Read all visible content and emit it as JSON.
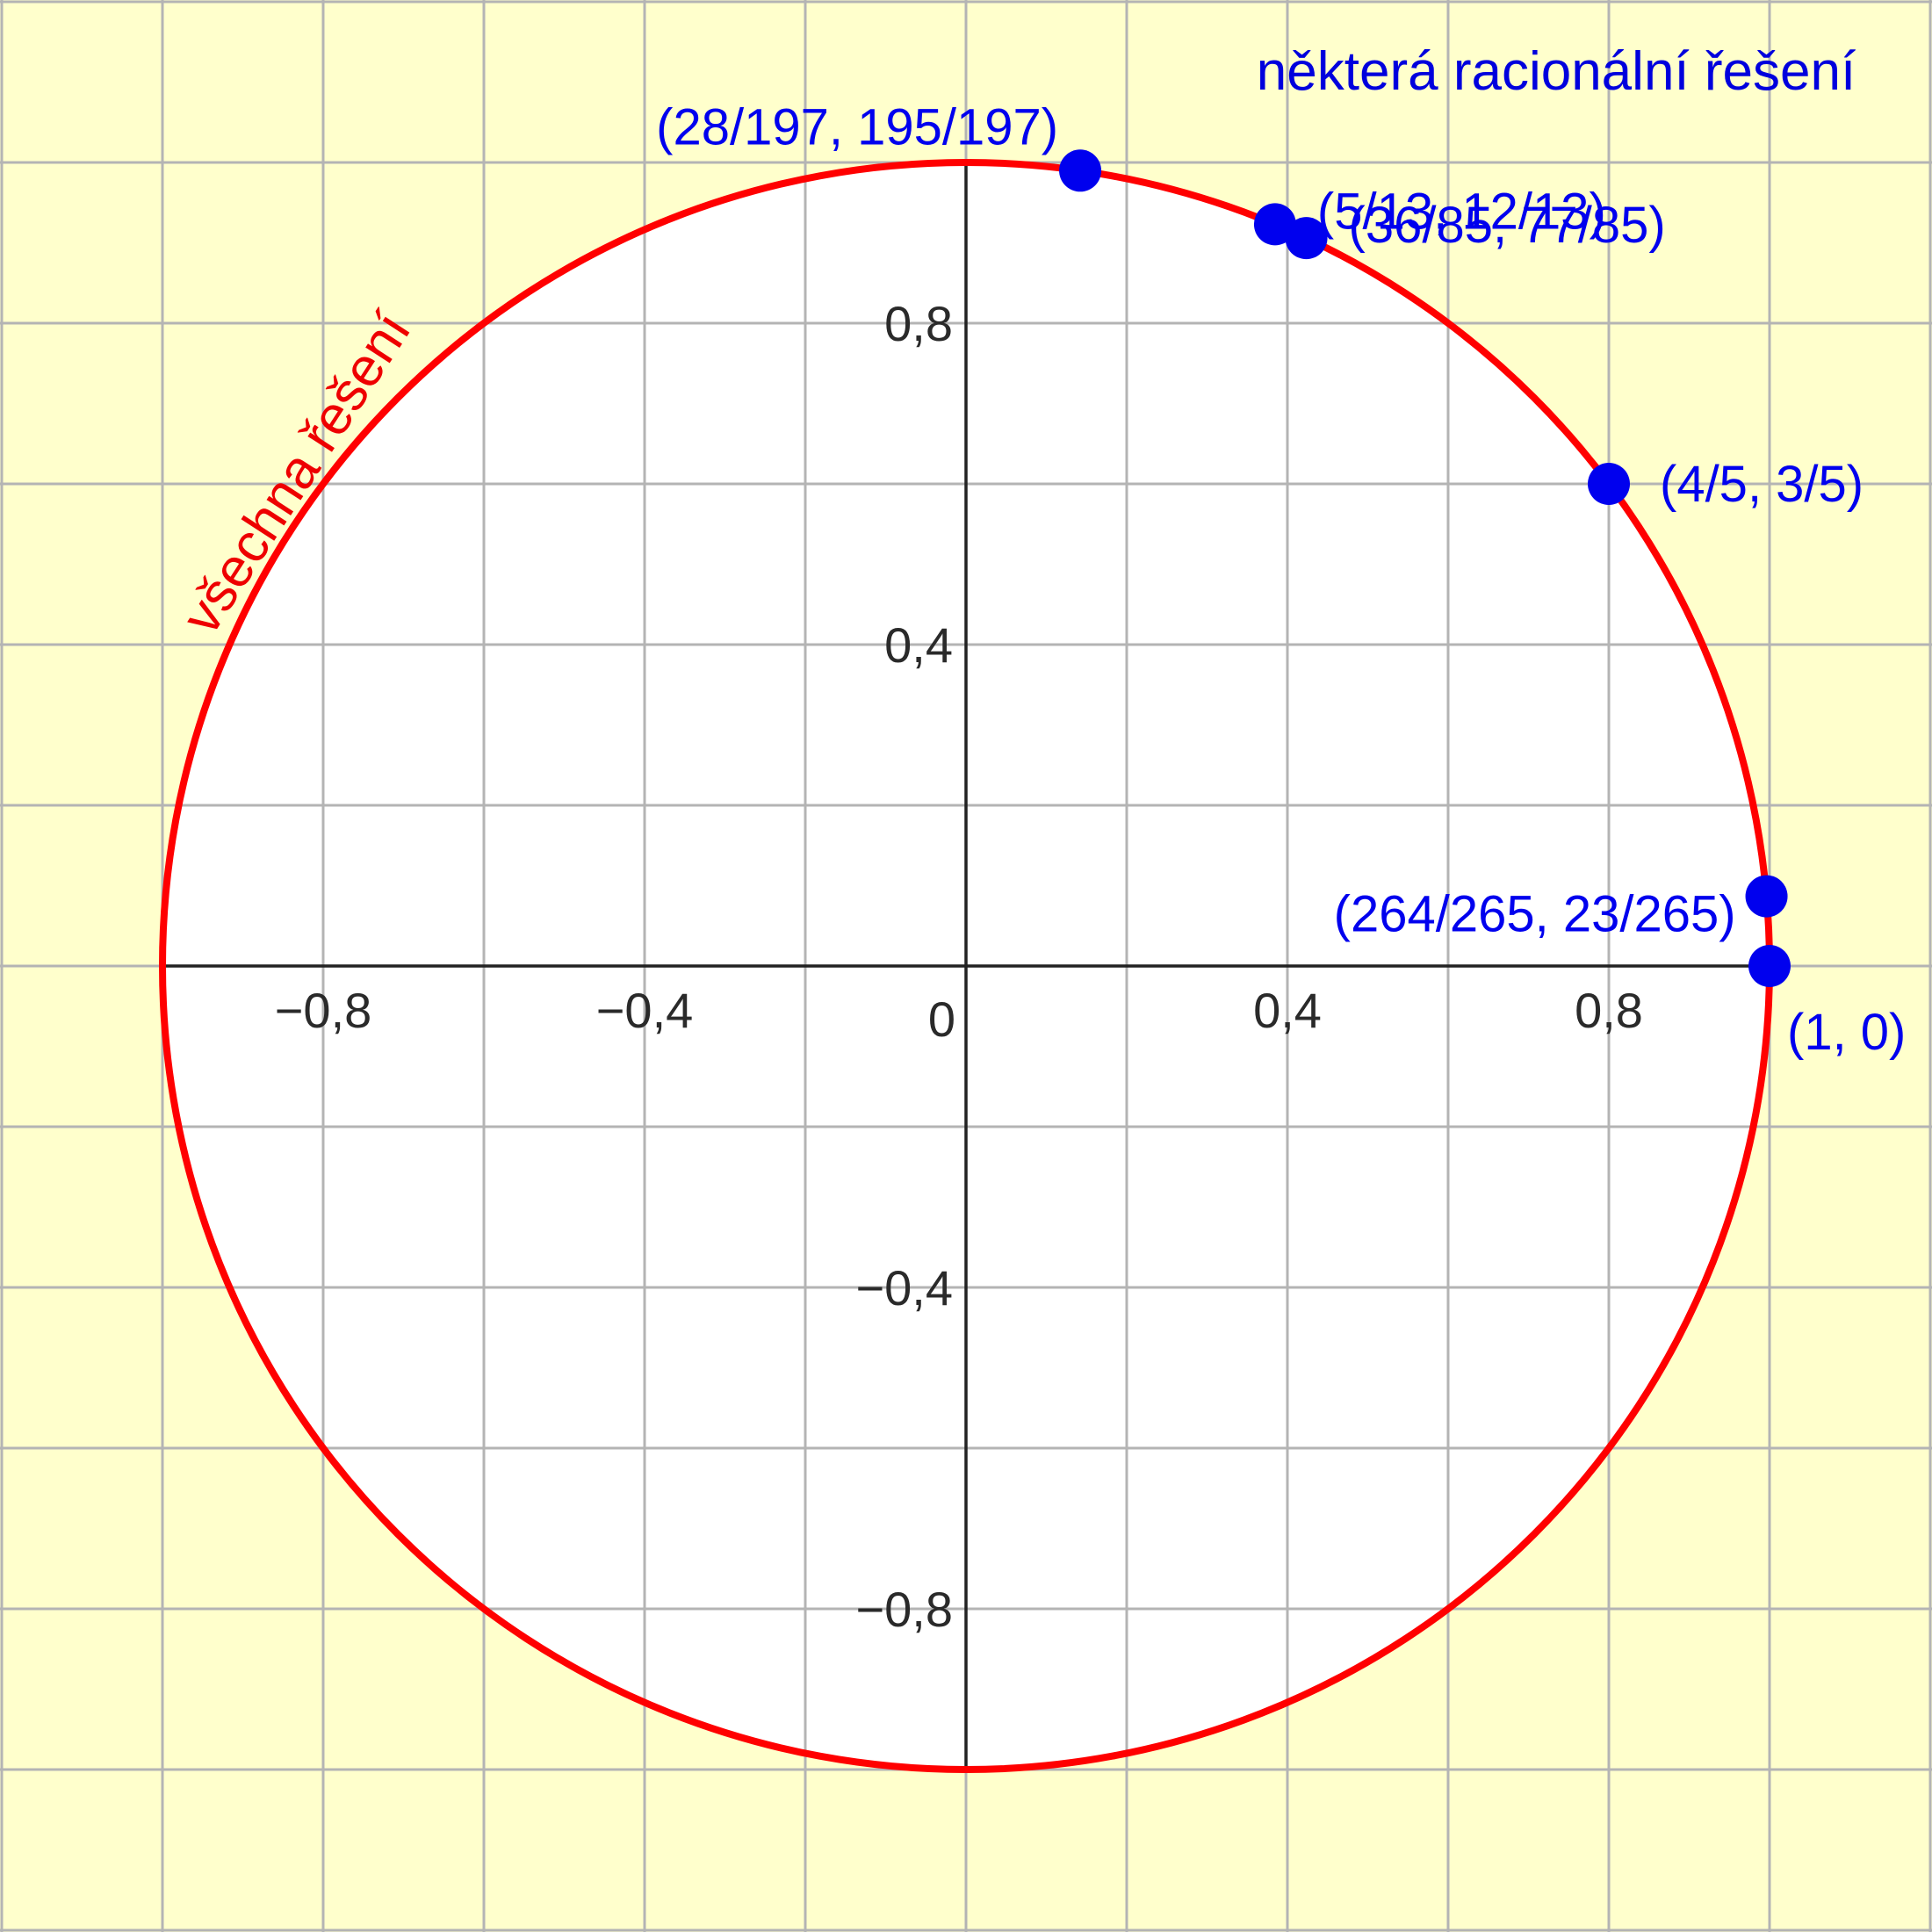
{
  "chart_data": {
    "type": "scatter",
    "title": "některá racionální řešení",
    "curve_label": "všechna řešení",
    "curve": "unit circle x^2 + y^2 = 1",
    "xlim": [
      -1.2,
      1.2
    ],
    "ylim": [
      -1.2,
      1.2
    ],
    "grid": true,
    "grid_step": 0.2,
    "x_ticks": [
      {
        "value": -0.8,
        "label": "−0,8"
      },
      {
        "value": -0.4,
        "label": "−0,4"
      },
      {
        "value": 0,
        "label": "0"
      },
      {
        "value": 0.4,
        "label": "0,4"
      },
      {
        "value": 0.8,
        "label": "0,8"
      }
    ],
    "y_ticks": [
      {
        "value": 0.8,
        "label": "0,8"
      },
      {
        "value": 0.4,
        "label": "0,4"
      },
      {
        "value": -0.4,
        "label": "−0,4"
      },
      {
        "value": -0.8,
        "label": "−0,8"
      }
    ],
    "points": [
      {
        "x": 0.14213,
        "y": 0.98985,
        "label": "(28/197, 195/197)"
      },
      {
        "x": 0.38462,
        "y": 0.92308,
        "label": "(5/13, 12/13)"
      },
      {
        "x": 0.42353,
        "y": 0.90588,
        "label": "(36/85, 77/85)"
      },
      {
        "x": 0.8,
        "y": 0.6,
        "label": "(4/5, 3/5)"
      },
      {
        "x": 0.99623,
        "y": 0.08679,
        "label": "(264/265, 23/265)"
      },
      {
        "x": 1,
        "y": 0,
        "label": "(1, 0)"
      }
    ]
  },
  "colors": {
    "background": "#ffffcc",
    "circle_fill": "#ffffff",
    "circle_stroke": "#ff0000",
    "point": "#0000ee",
    "grid": "#b4b4b4",
    "axis": "#222222"
  }
}
